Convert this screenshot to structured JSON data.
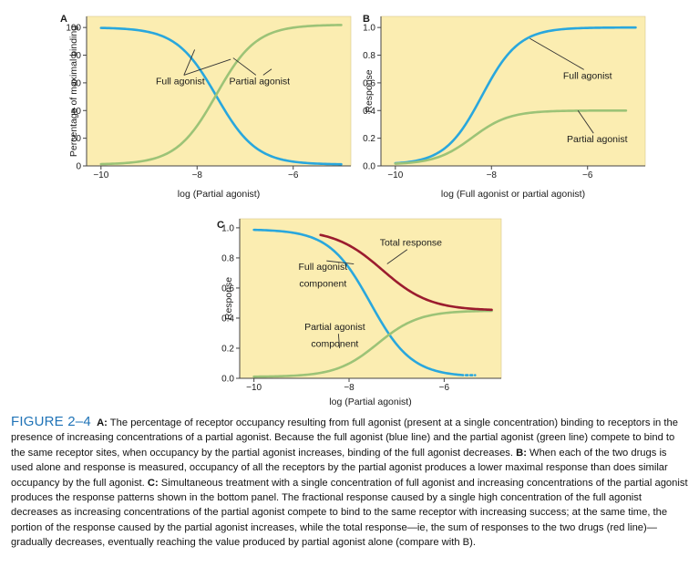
{
  "colors": {
    "panel_bg": "#fbedb1",
    "blue": "#29a7dd",
    "green": "#9cc377",
    "red": "#9b1c2e",
    "axis": "#444444",
    "leader": "#333333",
    "caption_heading": "#1f73b7"
  },
  "chart_data": [
    {
      "panel": "A",
      "type": "line",
      "xlabel": "log (Partial agonist)",
      "ylabel": "Percentage of maximal binding",
      "xlim": [
        -10.3,
        -4.8
      ],
      "ylim": [
        0,
        108
      ],
      "xticks": [
        -10,
        -8,
        -6
      ],
      "xtick_labels": [
        "−10",
        "−8",
        "−6"
      ],
      "yticks": [
        0,
        20,
        40,
        60,
        80,
        100
      ],
      "ytick_labels": [
        "0",
        "20",
        "40",
        "60",
        "80",
        "100"
      ],
      "series": [
        {
          "name": "Full agonist",
          "color": "blue",
          "start": -10,
          "end": -5.0,
          "bottom": 1,
          "top": 100,
          "mid": -7.6,
          "steep": 2.4,
          "rising": false
        },
        {
          "name": "Partial agonist",
          "color": "green",
          "start": -10,
          "end": -5.0,
          "bottom": 1,
          "top": 102,
          "mid": -7.6,
          "steep": 2.4,
          "rising": true
        }
      ],
      "annotations": [
        {
          "text": "Full agonist",
          "x": -8.35,
          "y": 59,
          "targets": [
            [
              -8.05,
              84
            ],
            [
              -7.3,
              77
            ]
          ]
        },
        {
          "text": "Partial agonist",
          "x": -6.7,
          "y": 59,
          "targets": [
            [
              -7.25,
              78
            ],
            [
              -6.45,
              70
            ]
          ]
        }
      ]
    },
    {
      "panel": "B",
      "type": "line",
      "xlabel": "log (Full agonist or partial agonist)",
      "ylabel": "Response",
      "xlim": [
        -10.3,
        -4.8
      ],
      "ylim": [
        0,
        1.08
      ],
      "xticks": [
        -10,
        -8,
        -6
      ],
      "xtick_labels": [
        "−10",
        "−8",
        "−6"
      ],
      "yticks": [
        0.0,
        0.2,
        0.4,
        0.6,
        0.8,
        1.0
      ],
      "ytick_labels": [
        "0.0",
        "0.2",
        "0.4",
        "0.6",
        "0.8",
        "1.0"
      ],
      "series": [
        {
          "name": "Full agonist",
          "color": "blue",
          "start": -10,
          "end": -5.0,
          "bottom": 0.01,
          "top": 1.0,
          "mid": -8.2,
          "steep": 2.6,
          "rising": true
        },
        {
          "name": "Partial agonist",
          "color": "green",
          "start": -10,
          "end": -5.2,
          "bottom": 0.01,
          "top": 0.4,
          "mid": -8.4,
          "steep": 2.6,
          "rising": true
        }
      ],
      "annotations": [
        {
          "text": "Full agonist",
          "x": -6.0,
          "y": 0.63,
          "targets": [
            [
              -7.2,
              0.92
            ]
          ]
        },
        {
          "text": "Partial agonist",
          "x": -5.8,
          "y": 0.17,
          "targets": [
            [
              -6.2,
              0.4
            ]
          ]
        }
      ]
    },
    {
      "panel": "C",
      "type": "line",
      "xlabel": "log (Partial agonist)",
      "ylabel": "Response",
      "xlim": [
        -10.3,
        -4.8
      ],
      "ylim": [
        0,
        1.06
      ],
      "xticks": [
        -10,
        -8,
        -6
      ],
      "xtick_labels": [
        "−10",
        "−8",
        "−6"
      ],
      "yticks": [
        0.0,
        0.2,
        0.4,
        0.6,
        0.8,
        1.0
      ],
      "ytick_labels": [
        "0.0",
        "0.2",
        "0.4",
        "0.6",
        "0.8",
        "1.0"
      ],
      "series": [
        {
          "name": "Full agonist component",
          "color": "blue",
          "start": -10,
          "end": -5.6,
          "bottom": 0.01,
          "top": 0.99,
          "mid": -7.55,
          "steep": 2.3,
          "rising": false,
          "dotted_to": -5.35
        },
        {
          "name": "Partial agonist component",
          "color": "green",
          "start": -10,
          "end": -5.0,
          "bottom": 0.01,
          "top": 0.45,
          "mid": -7.4,
          "steep": 2.3,
          "rising": true
        },
        {
          "name": "Total response",
          "color": "red",
          "start": -8.6,
          "end": -5.0,
          "bottom": 0.45,
          "top": 0.99,
          "mid": -7.3,
          "steep": 2.0,
          "rising": false
        }
      ],
      "annotations": [
        {
          "text": "Total response",
          "x": -6.7,
          "y": 0.88,
          "targets": [
            [
              -7.2,
              0.76
            ]
          ]
        },
        {
          "text": "Full agonist",
          "x": -8.55,
          "y": 0.72,
          "targets": [
            [
              -7.9,
              0.76
            ]
          ]
        },
        {
          "text": "component",
          "x": -8.55,
          "y": 0.61,
          "targets": []
        },
        {
          "text": "Partial agonist",
          "x": -8.3,
          "y": 0.32,
          "targets": [
            [
              -8.2,
              0.2
            ]
          ]
        },
        {
          "text": "component",
          "x": -8.3,
          "y": 0.21,
          "targets": []
        }
      ]
    }
  ],
  "panel_letters": [
    "A",
    "B",
    "C"
  ],
  "caption": {
    "heading": "FIGURE 2–4",
    "sections": [
      {
        "label": "A:",
        "text": " The percentage of receptor occupancy resulting from full agonist (present at a single concentration) binding to receptors in the presence of increasing concentrations of a partial agonist. Because the full agonist (blue line) and the partial agonist (green line) compete to bind to the same receptor sites, when occupancy by the partial agonist increases, binding of the full agonist decreases. "
      },
      {
        "label": "B:",
        "text": " When each of the two drugs is used alone and response is measured, occupancy of all the receptors by the partial agonist produces a lower maximal response than does similar occupancy by the full agonist. "
      },
      {
        "label": "C:",
        "text": " Simultaneous treatment with a single concentration of full agonist and increasing concentrations of the partial agonist produces the response patterns shown in the bottom panel. The fractional response caused by a single high concentration of the full agonist decreases as increasing concentrations of the partial agonist compete to bind to the same receptor with increasing success; at the same time, the portion of the response caused by the partial agonist increases, while the total response—ie, the sum of responses to the two drugs (red line)—gradually decreases, eventually reaching the value produced by partial agonist alone (compare with B)."
      }
    ]
  }
}
